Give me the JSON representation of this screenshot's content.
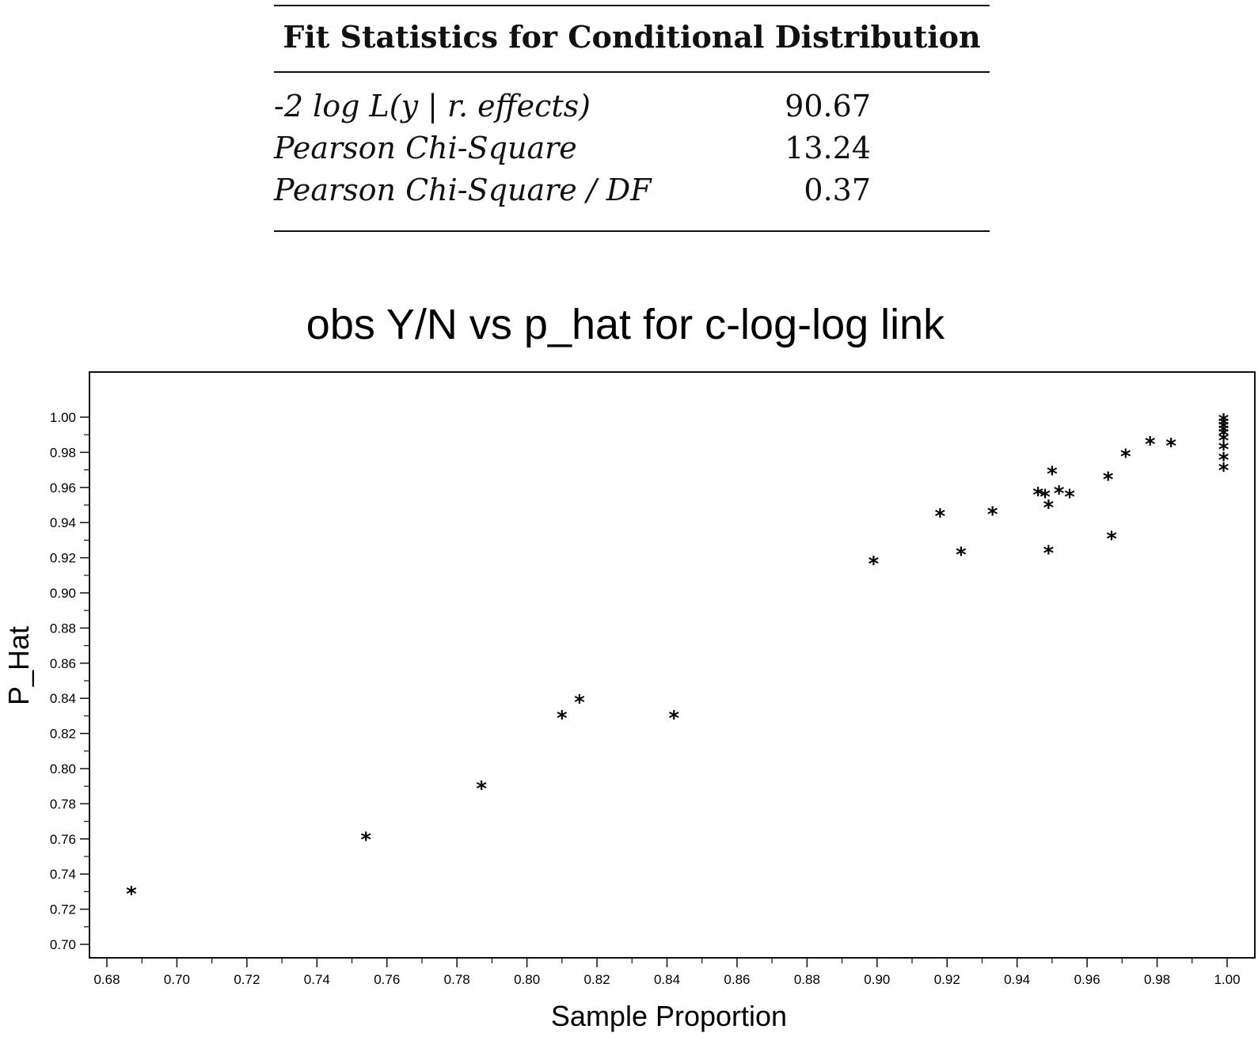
{
  "fit_table": {
    "title": "Fit Statistics for Conditional Distribution",
    "rows": [
      {
        "label": "-2 log L(y | r. effects)",
        "value": "90.67"
      },
      {
        "label": "Pearson Chi-Square",
        "value": "13.24"
      },
      {
        "label": "Pearson Chi-Square / DF",
        "value": "0.37"
      }
    ]
  },
  "chart_data": {
    "type": "scatter",
    "title": "obs Y/N vs p_hat for c-log-log link",
    "xlabel": "Sample Proportion",
    "ylabel": "P_Hat",
    "xlim": [
      0.68,
      1.0
    ],
    "ylim": [
      0.7,
      1.0
    ],
    "xticks": [
      "0.68",
      "0.70",
      "0.72",
      "0.74",
      "0.76",
      "0.78",
      "0.80",
      "0.82",
      "0.84",
      "0.86",
      "0.88",
      "0.90",
      "0.92",
      "0.94",
      "0.96",
      "0.98",
      "1.00"
    ],
    "yticks": [
      "1.00",
      "0.98",
      "0.96",
      "0.94",
      "0.92",
      "0.90",
      "0.88",
      "0.86",
      "0.84",
      "0.82",
      "0.80",
      "0.78",
      "0.76",
      "0.74",
      "0.72",
      "0.70"
    ],
    "marker": "*",
    "grid": false,
    "points": [
      {
        "x": 0.687,
        "y": 0.731
      },
      {
        "x": 0.754,
        "y": 0.762
      },
      {
        "x": 0.787,
        "y": 0.791
      },
      {
        "x": 0.81,
        "y": 0.831
      },
      {
        "x": 0.815,
        "y": 0.84
      },
      {
        "x": 0.842,
        "y": 0.831
      },
      {
        "x": 0.899,
        "y": 0.919
      },
      {
        "x": 0.918,
        "y": 0.946
      },
      {
        "x": 0.924,
        "y": 0.924
      },
      {
        "x": 0.933,
        "y": 0.947
      },
      {
        "x": 0.946,
        "y": 0.958
      },
      {
        "x": 0.948,
        "y": 0.957
      },
      {
        "x": 0.949,
        "y": 0.951
      },
      {
        "x": 0.949,
        "y": 0.925
      },
      {
        "x": 0.95,
        "y": 0.97
      },
      {
        "x": 0.952,
        "y": 0.959
      },
      {
        "x": 0.955,
        "y": 0.957
      },
      {
        "x": 0.966,
        "y": 0.967
      },
      {
        "x": 0.967,
        "y": 0.933
      },
      {
        "x": 0.971,
        "y": 0.98
      },
      {
        "x": 0.978,
        "y": 0.987
      },
      {
        "x": 0.984,
        "y": 0.986
      },
      {
        "x": 0.999,
        "y": 1.0
      },
      {
        "x": 0.999,
        "y": 0.998
      },
      {
        "x": 0.999,
        "y": 0.996
      },
      {
        "x": 0.999,
        "y": 0.994
      },
      {
        "x": 0.999,
        "y": 0.992
      },
      {
        "x": 0.999,
        "y": 0.989
      },
      {
        "x": 0.999,
        "y": 0.984
      },
      {
        "x": 0.999,
        "y": 0.978
      },
      {
        "x": 0.999,
        "y": 0.972
      }
    ]
  }
}
